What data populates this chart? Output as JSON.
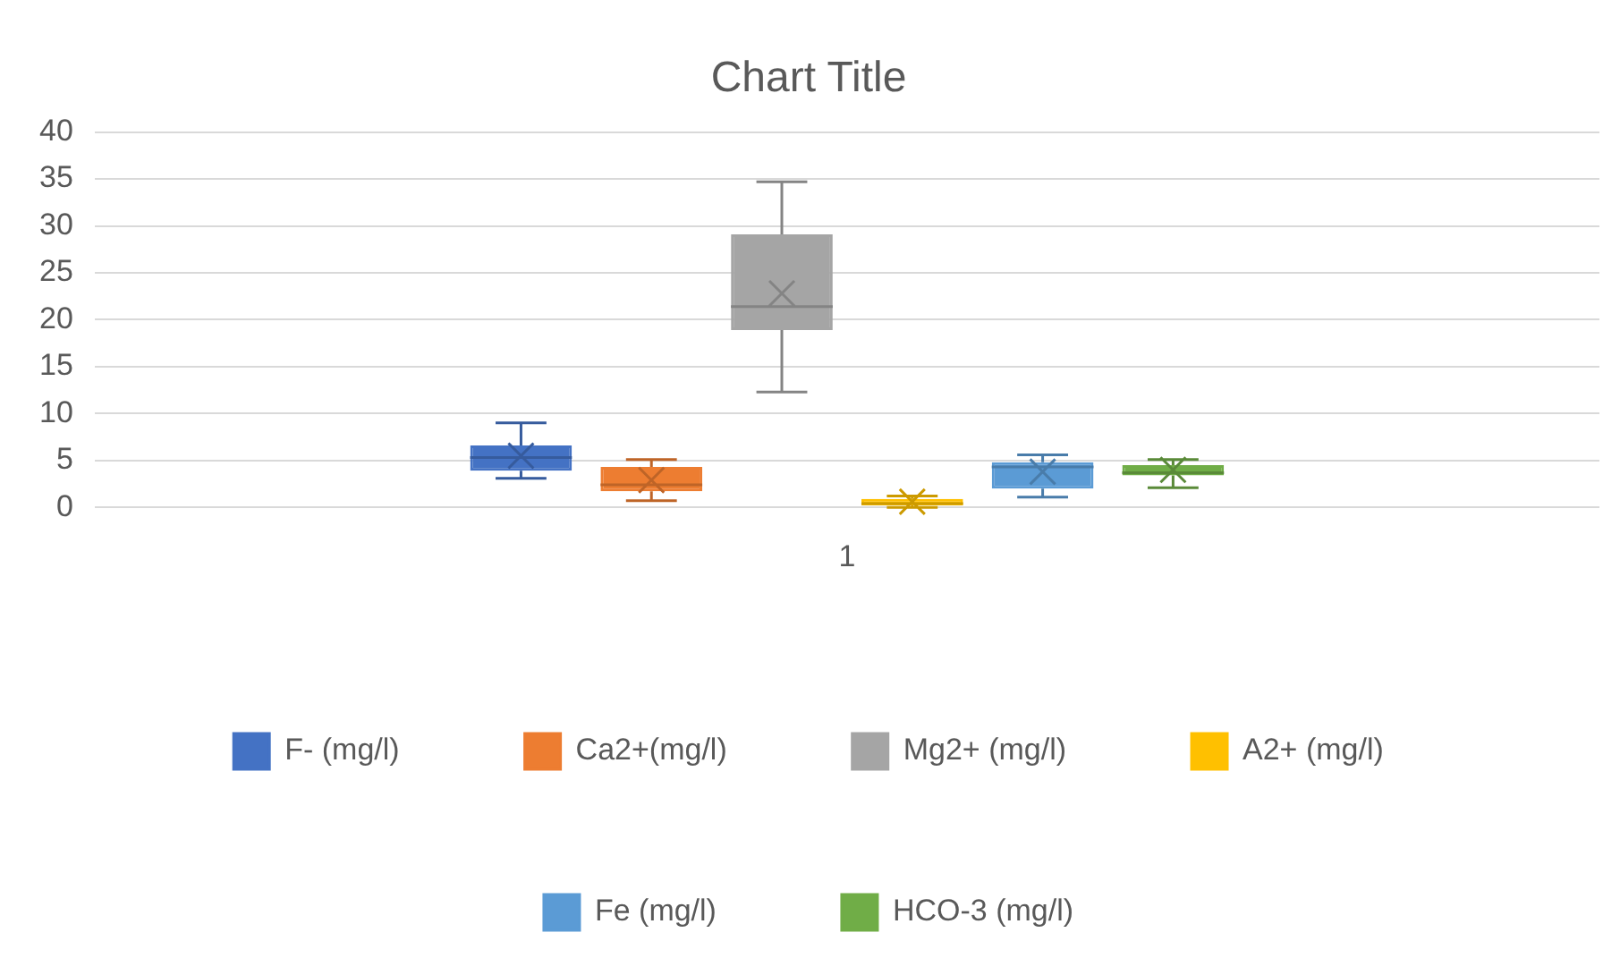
{
  "chart_data": {
    "type": "box",
    "title": "Chart Title",
    "categories": [
      "1"
    ],
    "series": [
      {
        "name": "F- (mg/l)",
        "color": "#4472c4",
        "boxes": [
          {
            "low": 3.1,
            "q1": 3.9,
            "median": 5.3,
            "q3": 6.6,
            "high": 9.0,
            "mean": 5.5
          }
        ]
      },
      {
        "name": "Ca2+(mg/l)",
        "color": "#ed7d31",
        "boxes": [
          {
            "low": 0.7,
            "q1": 1.7,
            "median": 2.4,
            "q3": 4.3,
            "high": 5.1,
            "mean": 2.9
          }
        ]
      },
      {
        "name": "Mg2+ (mg/l)",
        "color": "#a5a5a5",
        "boxes": [
          {
            "low": 12.3,
            "q1": 18.9,
            "median": 21.4,
            "q3": 29.1,
            "high": 34.7,
            "mean": 22.8
          }
        ]
      },
      {
        "name": "A2+ (mg/l)",
        "color": "#ffc000",
        "boxes": [
          {
            "low": 0.0,
            "q1": 0.2,
            "median": 0.4,
            "q3": 0.9,
            "high": 1.2,
            "mean": 0.6
          }
        ]
      },
      {
        "name": "Fe (mg/l)",
        "color": "#5b9bd5",
        "boxes": [
          {
            "low": 1.1,
            "q1": 2.0,
            "median": 4.3,
            "q3": 4.8,
            "high": 5.6,
            "mean": 3.8
          }
        ]
      },
      {
        "name": "HCO-3 (mg/l)",
        "color": "#70ad47",
        "boxes": [
          {
            "low": 2.1,
            "q1": 3.4,
            "median": 3.7,
            "q3": 4.5,
            "high": 5.1,
            "mean": 4.0
          }
        ]
      }
    ],
    "ylim": [
      0,
      40
    ],
    "yticks": [
      0,
      5,
      10,
      15,
      20,
      25,
      30,
      35,
      40
    ],
    "grid": "y",
    "legend": "bottom"
  }
}
